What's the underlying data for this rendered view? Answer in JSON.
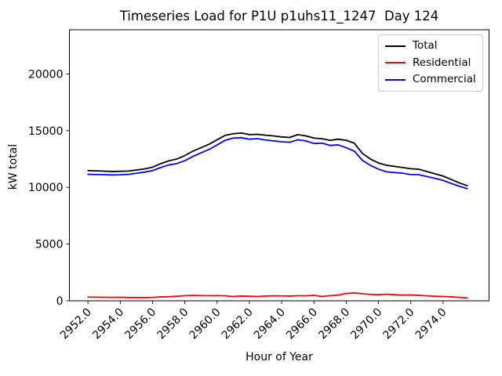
{
  "figure": {
    "title": "Timeseries Load for P1U p1uhs11_1247  Day 124"
  },
  "chart_data": {
    "type": "line",
    "title": "Timeseries Load for P1U p1uhs11_1247  Day 124",
    "xlabel": "Hour of Year",
    "ylabel": "kW total",
    "xlim": [
      2950.85,
      2976.85
    ],
    "ylim": [
      0,
      23900
    ],
    "grid": false,
    "legend_position": "upper right",
    "xticks": [
      2952,
      2954,
      2956,
      2958,
      2960,
      2962,
      2964,
      2966,
      2968,
      2970,
      2972,
      2974
    ],
    "xtick_labels": [
      "2952.0",
      "2954.0",
      "2956.0",
      "2958.0",
      "2960.0",
      "2962.0",
      "2964.0",
      "2966.0",
      "2968.0",
      "2970.0",
      "2972.0",
      "2974.0"
    ],
    "yticks": [
      0,
      5000,
      10000,
      15000,
      20000
    ],
    "ytick_labels": [
      "0",
      "5000",
      "10000",
      "15000",
      "20000"
    ],
    "x": [
      2952.0,
      2952.5,
      2953.0,
      2953.5,
      2954.0,
      2954.5,
      2955.0,
      2955.5,
      2956.0,
      2956.5,
      2957.0,
      2957.5,
      2958.0,
      2958.5,
      2959.0,
      2959.5,
      2960.0,
      2960.5,
      2961.0,
      2961.5,
      2962.0,
      2962.5,
      2963.0,
      2963.5,
      2964.0,
      2964.5,
      2965.0,
      2965.5,
      2966.0,
      2966.5,
      2967.0,
      2967.5,
      2968.0,
      2968.5,
      2969.0,
      2969.5,
      2970.0,
      2970.5,
      2971.0,
      2971.5,
      2972.0,
      2972.5,
      2973.0,
      2973.5,
      2974.0,
      2974.5,
      2975.0,
      2975.5
    ],
    "series": [
      {
        "name": "Total",
        "color": "#000000",
        "values": [
          11480,
          11460,
          11430,
          11400,
          11420,
          11440,
          11530,
          11630,
          11780,
          12090,
          12340,
          12500,
          12800,
          13200,
          13500,
          13800,
          14200,
          14590,
          14730,
          14800,
          14650,
          14680,
          14600,
          14540,
          14450,
          14400,
          14650,
          14540,
          14350,
          14290,
          14150,
          14250,
          14150,
          13900,
          13000,
          12500,
          12150,
          11950,
          11850,
          11750,
          11650,
          11600,
          11400,
          11200,
          11000,
          10700,
          10400,
          10150
        ]
      },
      {
        "name": "Residential",
        "color": "#ff0000",
        "values": [
          330,
          320,
          310,
          300,
          310,
          290,
          280,
          280,
          300,
          340,
          360,
          400,
          450,
          470,
          460,
          450,
          460,
          440,
          380,
          420,
          400,
          380,
          420,
          440,
          430,
          420,
          450,
          440,
          480,
          390,
          450,
          500,
          650,
          700,
          620,
          560,
          540,
          580,
          540,
          500,
          520,
          480,
          440,
          400,
          380,
          350,
          300,
          260
        ]
      },
      {
        "name": "Commercial",
        "color": "#0000ff",
        "values": [
          11150,
          11140,
          11120,
          11100,
          11110,
          11150,
          11250,
          11350,
          11480,
          11750,
          11980,
          12100,
          12350,
          12730,
          13040,
          13350,
          13740,
          14150,
          14350,
          14380,
          14250,
          14300,
          14180,
          14100,
          14020,
          13980,
          14200,
          14100,
          13870,
          13900,
          13700,
          13750,
          13500,
          13200,
          12380,
          11940,
          11610,
          11370,
          11310,
          11250,
          11130,
          11120,
          10960,
          10800,
          10620,
          10350,
          10100,
          9890
        ]
      }
    ]
  }
}
